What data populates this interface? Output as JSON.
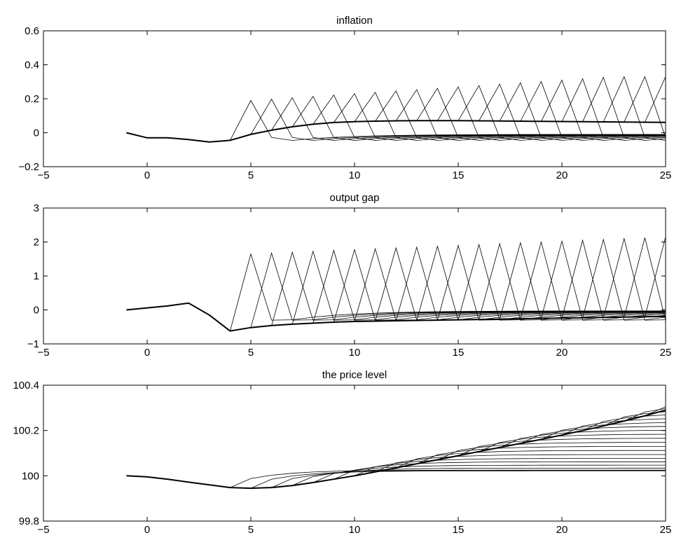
{
  "figure": {
    "panels": [
      {
        "title": "inflation",
        "x_ticks": [
          "−5",
          "0",
          "5",
          "10",
          "15",
          "20",
          "25"
        ],
        "y_ticks": [
          "−0.2",
          "0",
          "0.2",
          "0.4",
          "0.6"
        ]
      },
      {
        "title": "output gap",
        "x_ticks": [
          "−5",
          "0",
          "5",
          "10",
          "15",
          "20",
          "25"
        ],
        "y_ticks": [
          "−1",
          "0",
          "1",
          "2",
          "3"
        ]
      },
      {
        "title": "the price level",
        "x_ticks": [
          "−5",
          "0",
          "5",
          "10",
          "15",
          "20",
          "25"
        ],
        "y_ticks": [
          "99.8",
          "100",
          "100.2",
          "100.4"
        ]
      }
    ]
  },
  "chart_data": [
    {
      "type": "line",
      "title": "inflation",
      "xlim": [
        -5,
        25
      ],
      "ylim": [
        -0.2,
        0.6
      ],
      "x_ticks": [
        -5,
        0,
        5,
        10,
        15,
        20,
        25
      ],
      "y_ticks": [
        -0.2,
        0,
        0.2,
        0.4,
        0.6
      ],
      "series": [
        {
          "role": "baseline",
          "x": [
            -1,
            0,
            1,
            2,
            3,
            4,
            5,
            6,
            7,
            8,
            9,
            10,
            11,
            12,
            13,
            14,
            15,
            16,
            17,
            18,
            19,
            20,
            21,
            22,
            23,
            24,
            25
          ],
          "y": [
            0.0,
            -0.03,
            -0.03,
            -0.04,
            -0.055,
            -0.045,
            -0.01,
            0.015,
            0.035,
            0.05,
            0.06,
            0.065,
            0.068,
            0.07,
            0.071,
            0.071,
            0.071,
            0.07,
            0.069,
            0.068,
            0.067,
            0.066,
            0.065,
            0.064,
            0.063,
            0.062,
            0.061
          ]
        }
      ],
      "fan": {
        "description": "alternative paths branching off the baseline, one per start period",
        "start_periods": [
          4,
          5,
          6,
          7,
          8,
          9,
          10,
          11,
          12,
          13,
          14,
          15,
          16,
          17,
          18,
          19,
          20,
          21,
          22,
          23,
          24
        ],
        "jump": 0.19,
        "jump_growth": 0.008,
        "max_jump": 0.33,
        "undershoot": -0.06,
        "end_value": -0.01
      }
    },
    {
      "type": "line",
      "title": "output gap",
      "xlim": [
        -5,
        25
      ],
      "ylim": [
        -1,
        3
      ],
      "x_ticks": [
        -5,
        0,
        5,
        10,
        15,
        20,
        25
      ],
      "y_ticks": [
        -1,
        0,
        1,
        2,
        3
      ],
      "series": [
        {
          "role": "baseline",
          "x": [
            -1,
            0,
            1,
            2,
            3,
            4,
            5,
            6,
            7,
            8,
            9,
            10,
            11,
            12,
            13,
            14,
            15,
            16,
            17,
            18,
            19,
            20,
            21,
            22,
            23,
            24,
            25
          ],
          "y": [
            0.0,
            0.06,
            0.12,
            0.2,
            -0.15,
            -0.62,
            -0.52,
            -0.46,
            -0.42,
            -0.39,
            -0.36,
            -0.34,
            -0.33,
            -0.32,
            -0.31,
            -0.3,
            -0.29,
            -0.28,
            -0.27,
            -0.26,
            -0.25,
            -0.24,
            -0.23,
            -0.22,
            -0.21,
            -0.2,
            -0.19
          ]
        }
      ],
      "fan": {
        "description": "alternative paths branching off the baseline, one per start period",
        "start_periods": [
          4,
          5,
          6,
          7,
          8,
          9,
          10,
          11,
          12,
          13,
          14,
          15,
          16,
          17,
          18,
          19,
          20,
          21,
          22,
          23,
          24
        ],
        "jump": 1.65,
        "jump_growth": 0.025,
        "max_jump": 2.15,
        "undershoot": -0.4,
        "end_value": -0.03
      }
    },
    {
      "type": "line",
      "title": "the price level",
      "xlim": [
        -5,
        25
      ],
      "ylim": [
        99.8,
        100.4
      ],
      "x_ticks": [
        -5,
        0,
        5,
        10,
        15,
        20,
        25
      ],
      "y_ticks": [
        99.8,
        100.0,
        100.2,
        100.4
      ],
      "series": [
        {
          "role": "baseline",
          "x": [
            -1,
            0,
            1,
            2,
            3,
            4,
            5,
            6,
            7,
            8,
            9,
            10,
            11,
            12,
            13,
            14,
            15,
            16,
            17,
            18,
            19,
            20,
            21,
            22,
            23,
            24,
            25
          ],
          "y": [
            100.0,
            99.995,
            99.985,
            99.972,
            99.96,
            99.948,
            99.945,
            99.948,
            99.957,
            99.97,
            99.985,
            100.0,
            100.017,
            100.035,
            100.053,
            100.071,
            100.089,
            100.107,
            100.125,
            100.143,
            100.161,
            100.18,
            100.2,
            100.22,
            100.242,
            100.265,
            100.29
          ]
        }
      ],
      "fan": {
        "description": "cumulative price paths branching off the baseline",
        "start_periods": [
          4,
          5,
          6,
          7,
          8,
          9,
          10,
          11,
          12,
          13,
          14,
          15,
          16,
          17,
          18,
          19,
          20,
          21,
          22,
          23,
          24
        ],
        "rise": 0.04,
        "settle_base": 100.0
      }
    }
  ]
}
